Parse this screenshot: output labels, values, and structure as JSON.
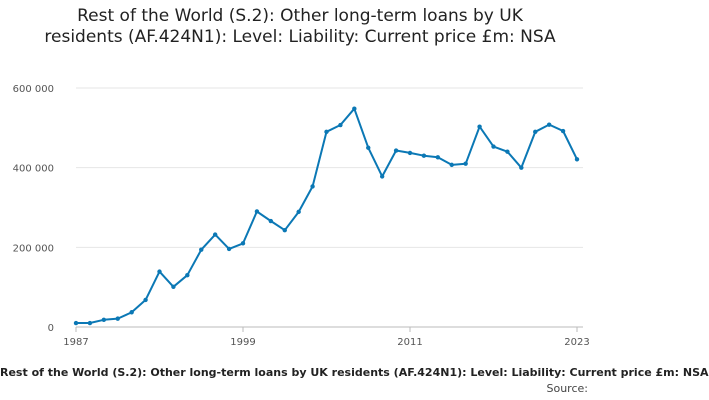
{
  "chart_data": {
    "type": "line",
    "title": "Rest of the World (S.2): Other long-term loans by UK residents (AF.424N1): Level: Liability: Current price £m: NSA",
    "xlabel": "",
    "ylabel": "",
    "x": [
      1987,
      1988,
      1989,
      1990,
      1991,
      1992,
      1993,
      1994,
      1995,
      1996,
      1997,
      1998,
      1999,
      2000,
      2001,
      2002,
      2003,
      2004,
      2005,
      2006,
      2007,
      2008,
      2009,
      2010,
      2011,
      2012,
      2013,
      2014,
      2015,
      2016,
      2017,
      2018,
      2019,
      2020,
      2021,
      2022,
      2023
    ],
    "series": [
      {
        "values": [
          10000,
          10000,
          18000,
          21000,
          37000,
          68000,
          139000,
          101000,
          130000,
          194000,
          232000,
          196000,
          210000,
          290000,
          266000,
          243000,
          289000,
          353000,
          490000,
          507000,
          548000,
          450000,
          378000,
          443000,
          437000,
          430000,
          426000,
          407000,
          410000,
          503000,
          453000,
          440000,
          400000,
          490000,
          508000,
          492000,
          421000
        ],
        "color": "#0b78b5"
      }
    ],
    "xticks": [
      "1987",
      "1999",
      "2011",
      "2023"
    ],
    "yticks": [
      "0",
      "200 000",
      "400 000",
      "600 000"
    ],
    "xlim": [
      1987,
      2023
    ],
    "ylim": [
      0,
      600000
    ],
    "grid": true,
    "legend": "none"
  },
  "footer": {
    "caption": "Rest of the World (S.2): Other long-term loans by UK residents (AF.424N1): Level: Liability: Current price £m: NSA",
    "source": "Source:"
  }
}
